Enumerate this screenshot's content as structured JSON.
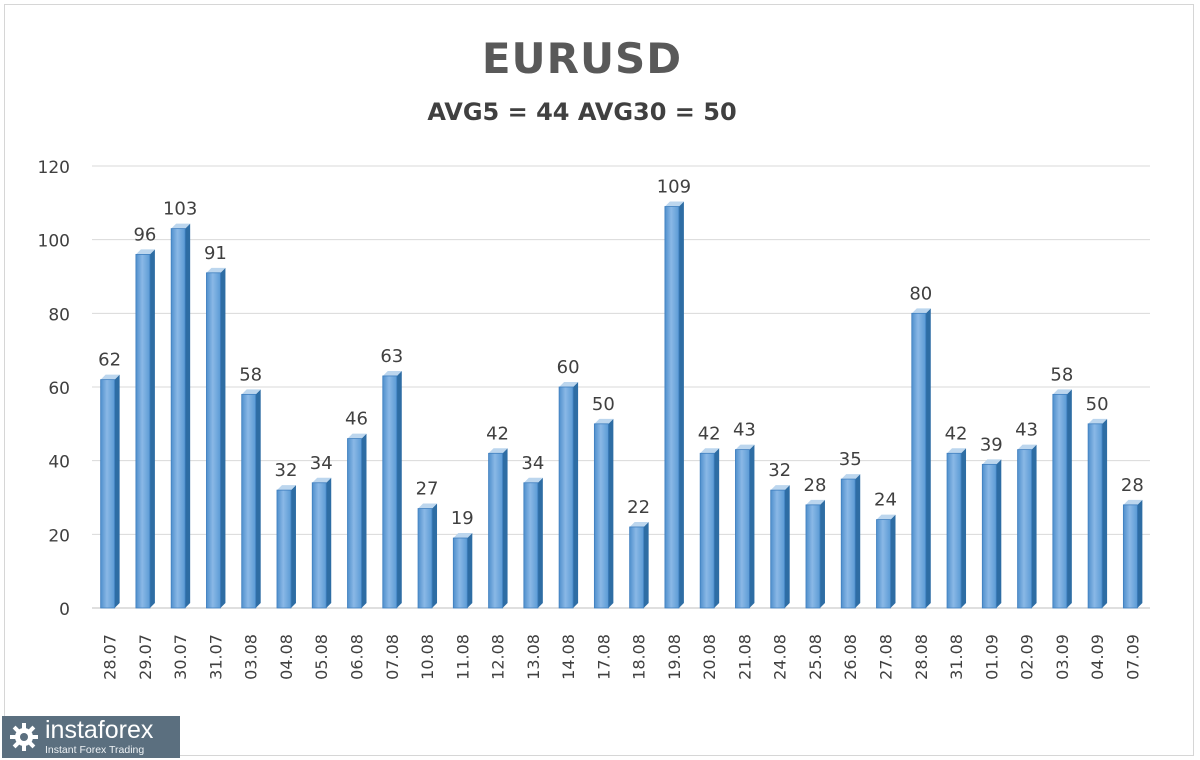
{
  "chart_data": {
    "type": "bar",
    "title": "EURUSD",
    "subtitle": "AVG5 = 44 AVG30 = 50",
    "categories": [
      "28.07",
      "29.07",
      "30.07",
      "31.07",
      "03.08",
      "04.08",
      "05.08",
      "06.08",
      "07.08",
      "10.08",
      "11.08",
      "12.08",
      "13.08",
      "14.08",
      "17.08",
      "18.08",
      "19.08",
      "20.08",
      "21.08",
      "24.08",
      "25.08",
      "26.08",
      "27.08",
      "28.08",
      "31.08",
      "01.09",
      "02.09",
      "03.09",
      "04.09",
      "07.09"
    ],
    "values": [
      62,
      96,
      103,
      91,
      58,
      32,
      34,
      46,
      63,
      27,
      19,
      42,
      34,
      60,
      50,
      22,
      109,
      42,
      43,
      32,
      28,
      35,
      24,
      80,
      42,
      39,
      43,
      58,
      50,
      28
    ],
    "ylim": [
      0,
      120
    ],
    "yticks": [
      0,
      20,
      40,
      60,
      80,
      100,
      120
    ],
    "grid": true,
    "data_labels": true,
    "xlabel": "",
    "ylabel": "",
    "colors": {
      "bar_front": "#5b9bd5",
      "bar_light": "#9cc3e8",
      "bar_side": "#2e6da4",
      "bar_top": "#bcd6ee",
      "grid": "#d9d9d9",
      "text": "#404040"
    }
  },
  "watermark": {
    "name": "instaforex",
    "tagline": "Instant Forex Trading",
    "background": "#5b6f7f"
  }
}
